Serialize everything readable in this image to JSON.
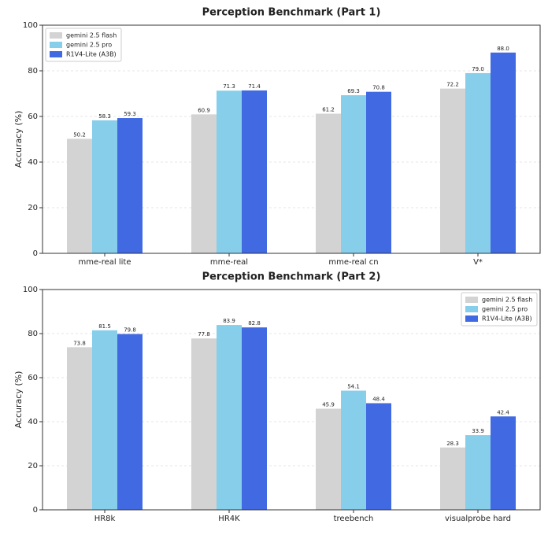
{
  "chart_data": [
    {
      "type": "bar",
      "title": "Perception Benchmark (Part 1)",
      "y_label": "Accuracy (%)",
      "categories": [
        "mme-real lite",
        "mme-real",
        "mme-real cn",
        "V*"
      ],
      "series": [
        {
          "name": "gemini 2.5 flash",
          "color": "#d3d3d3",
          "values": [
            50.2,
            60.9,
            61.2,
            72.2
          ]
        },
        {
          "name": "gemini 2.5 pro",
          "color": "#87ceeb",
          "values": [
            58.3,
            71.3,
            69.3,
            79.0
          ],
          "value_labels": [
            "58.3",
            "71.3",
            "69.3",
            "79.0"
          ]
        },
        {
          "name": "R1V4-Lite (A3B)",
          "color": "#4169e1",
          "values": [
            59.3,
            71.4,
            70.8,
            88.0
          ],
          "value_labels": [
            "59.3",
            "71.4",
            "70.8",
            "88.0"
          ]
        }
      ],
      "ylim": [
        0,
        100
      ],
      "yticks": [
        0,
        20,
        40,
        60,
        80,
        100
      ],
      "grid": true,
      "legend": "upper-left"
    },
    {
      "type": "bar",
      "title": "Perception Benchmark (Part 2)",
      "y_label": "Accuracy (%)",
      "categories": [
        "HR8k",
        "HR4K",
        "treebench",
        "visualprobe hard"
      ],
      "series": [
        {
          "name": "gemini 2.5 flash",
          "color": "#d3d3d3",
          "values": [
            73.8,
            77.8,
            45.9,
            28.3
          ]
        },
        {
          "name": "gemini 2.5 pro",
          "color": "#87ceeb",
          "values": [
            81.5,
            83.9,
            54.1,
            33.9
          ]
        },
        {
          "name": "R1V4-Lite (A3B)",
          "color": "#4169e1",
          "values": [
            79.8,
            82.8,
            48.4,
            42.4
          ]
        }
      ],
      "ylim": [
        0,
        100
      ],
      "yticks": [
        0,
        20,
        40,
        60,
        80,
        100
      ],
      "grid": true,
      "legend": "upper-right"
    }
  ]
}
